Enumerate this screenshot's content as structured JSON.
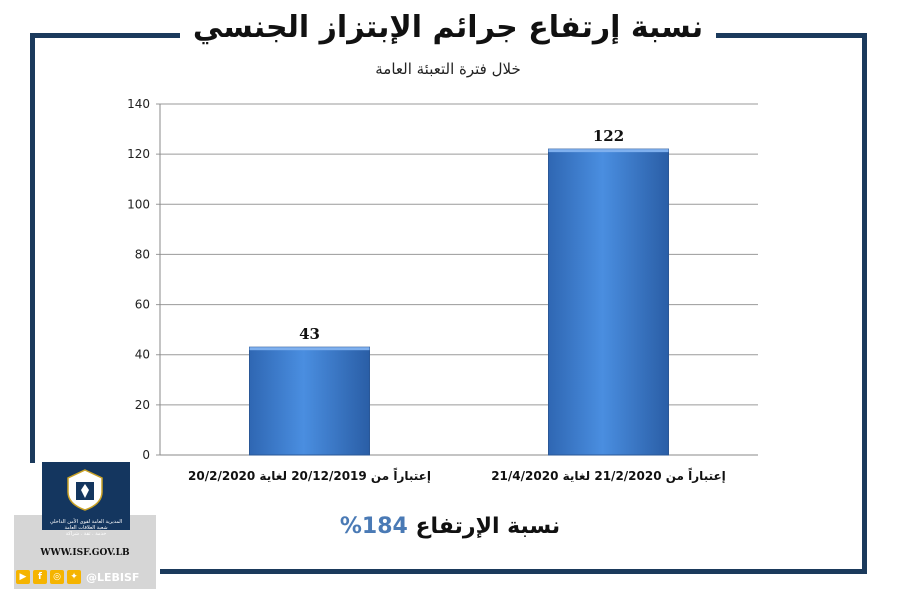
{
  "title": "نسبة إرتفاع جرائم الإبتزاز الجنسي",
  "subtitle": "خلال فترة التعبئة العامة",
  "chart_data": {
    "type": "bar",
    "categories": [
      "إعتباراً من 20/12/2019 لغاية 20/2/2020",
      "إعتباراً من 21/2/2020 لغاية 21/4/2020"
    ],
    "values": [
      43,
      122
    ],
    "ylim": [
      0,
      140
    ],
    "yticks": [
      0,
      20,
      40,
      60,
      80,
      100,
      120,
      140
    ],
    "grid": true,
    "bar_color": "#3f7fd1"
  },
  "increase": {
    "label": "نسبة الإرتفاع",
    "value": "184%"
  },
  "logo": {
    "org_line1": "المديرية العامة لقوى الأمن الداخلي",
    "org_line2": "شعبة العلاقات العامة",
    "org_line3": "خدمة . ثقة . شراكة"
  },
  "website": "WWW.ISF.GOV.LB",
  "social": {
    "handle": "@LEBISF",
    "icons": [
      "youtube-icon",
      "facebook-icon",
      "instagram-icon",
      "twitter-icon"
    ]
  },
  "colors": {
    "frame": "#1b3a5c",
    "accent": "#4a7ab5"
  }
}
